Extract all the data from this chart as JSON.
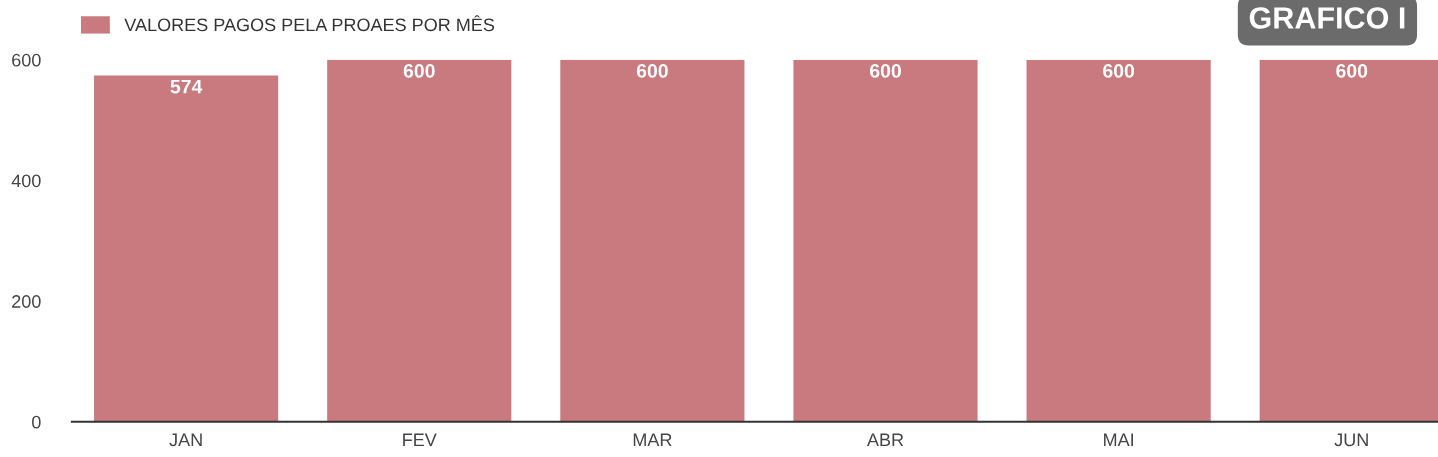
{
  "chart_data": {
    "type": "bar",
    "title": "GRAFICO I",
    "categories": [
      "JAN",
      "FEV",
      "MAR",
      "ABR",
      "MAI",
      "JUN"
    ],
    "series": [
      {
        "name": "VALORES PAGOS PELA PROAES POR MÊS",
        "color": "#c87a7f",
        "values": [
          574,
          600,
          600,
          600,
          600,
          600
        ]
      }
    ],
    "ylim": [
      0,
      600
    ],
    "yticks": [
      0,
      200,
      400,
      600
    ],
    "data_labels": true,
    "legend": "top left",
    "grid": false
  }
}
